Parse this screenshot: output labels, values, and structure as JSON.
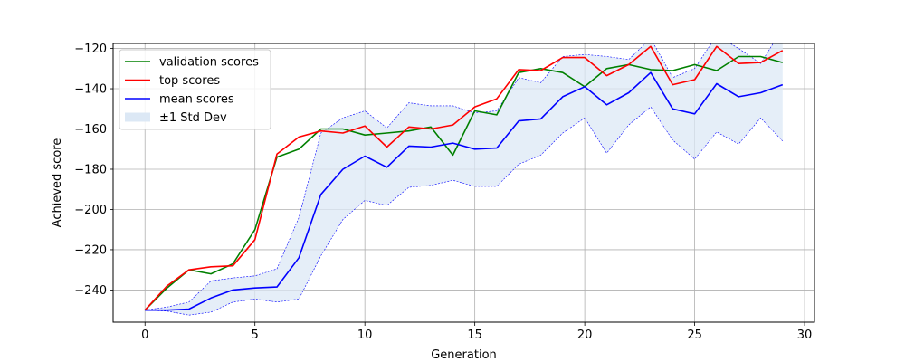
{
  "chart_data": {
    "type": "line",
    "title": "",
    "xlabel": "Generation",
    "ylabel": "Achieved score",
    "xlim": [
      -1.45,
      30.45
    ],
    "ylim": [
      -256,
      -117.5
    ],
    "xticks": [
      0,
      5,
      10,
      15,
      20,
      25,
      30
    ],
    "yticks": [
      -240,
      -220,
      -200,
      -180,
      -160,
      -140,
      -120
    ],
    "grid": true,
    "legend_position": "upper-left",
    "x": [
      0,
      1,
      2,
      3,
      4,
      5,
      6,
      7,
      8,
      9,
      10,
      11,
      12,
      13,
      14,
      15,
      16,
      17,
      18,
      19,
      20,
      21,
      22,
      23,
      24,
      25,
      26,
      27,
      28,
      29
    ],
    "series": [
      {
        "name": "validation scores",
        "color": "#008000",
        "values": [
          -250,
          -239,
          -230,
          -232,
          -227,
          -210,
          -174,
          -170,
          -160,
          -160,
          -163,
          -162,
          -161,
          -159,
          -173,
          -151,
          -153,
          -132,
          -130,
          -132,
          -139,
          -130,
          -128,
          -130.5,
          -131,
          -128,
          -131,
          -124,
          -124,
          -127
        ]
      },
      {
        "name": "top scores",
        "color": "#ff0000",
        "values": [
          -250,
          -238,
          -230,
          -228.5,
          -228,
          -215,
          -172.5,
          -164,
          -161,
          -162,
          -158.5,
          -169,
          -159,
          -160,
          -158,
          -149,
          -145,
          -130.5,
          -131,
          -124.5,
          -124.5,
          -133.5,
          -128,
          -119,
          -138,
          -135.5,
          -119,
          -127.5,
          -127,
          -121
        ]
      },
      {
        "name": "mean scores",
        "color": "#0000ff",
        "values": [
          -250,
          -250,
          -249.5,
          -244,
          -240,
          -239,
          -238.5,
          -224,
          -192.5,
          -180,
          -173.5,
          -179,
          -168.5,
          -169,
          -167,
          -170,
          -169.5,
          -156,
          -155,
          -144,
          -139,
          -148,
          -142,
          -132,
          -150,
          -152.5,
          -137.5,
          -144,
          -142,
          -138
        ]
      }
    ],
    "std_band": {
      "name": "±1 Std Dev",
      "fill_color": "#dce8f5",
      "edge_color": "#0000ff",
      "upper": [
        -250,
        -248.5,
        -246,
        -235.5,
        -234,
        -233,
        -229.5,
        -204,
        -162,
        -154.5,
        -151,
        -159.5,
        -147,
        -148.5,
        -148.5,
        -152,
        -151,
        -134.5,
        -137,
        -124,
        -123,
        -124,
        -125.5,
        -115,
        -134.5,
        -130,
        -113.5,
        -120,
        -127.5,
        -110
      ],
      "lower": [
        -250,
        -250.5,
        -252.5,
        -251,
        -246,
        -244.5,
        -246,
        -244.5,
        -223,
        -205,
        -195.5,
        -198,
        -189,
        -188,
        -185.5,
        -188.5,
        -188.5,
        -177.5,
        -173,
        -162,
        -154.5,
        -172,
        -158,
        -149,
        -165.5,
        -175,
        -161.5,
        -167.5,
        -154.5,
        -166
      ]
    }
  }
}
